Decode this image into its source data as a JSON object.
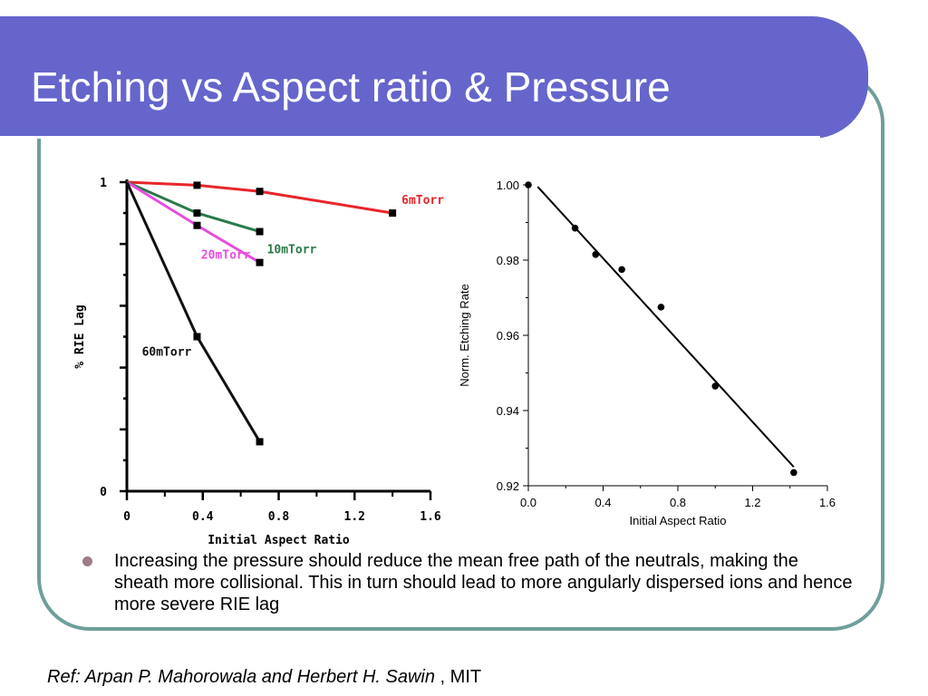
{
  "slide": {
    "title": "Etching vs Aspect ratio & Pressure",
    "bullet": "Increasing the pressure should reduce the mean free path of the neutrals, making the sheath more collisional. This in turn should lead to more angularly dispersed ions and hence more severe RIE lag",
    "ref_authors": "Ref: Arpan P. Mahorowala and Herbert H. Sawin",
    "ref_affiliation": " , MIT"
  },
  "colors": {
    "title_bar": "#6565cc",
    "frame_border": "#6f9f9b",
    "bullet": "#9e7e86"
  },
  "chart_data": [
    {
      "type": "line",
      "title": "",
      "xlabel": "Initial Aspect Ratio",
      "ylabel": "% RIE Lag",
      "xlim": [
        0,
        1.6
      ],
      "ylim": [
        0,
        1
      ],
      "x_ticks": [
        "0",
        "0.4",
        "0.8",
        "1.2",
        "1.6"
      ],
      "y_ticks": [
        "0",
        "",
        "",
        "",
        "",
        "",
        "",
        "",
        "",
        "",
        "1"
      ],
      "grid": false,
      "legend": "inline labels",
      "series": [
        {
          "name": "6mTorr",
          "color": "#e8262a",
          "x": [
            0,
            0.37,
            0.7,
            1.4
          ],
          "y": [
            1,
            0.99,
            0.97,
            0.9
          ]
        },
        {
          "name": "10mTorr",
          "color": "#2a7a4a",
          "x": [
            0,
            0.37,
            0.7
          ],
          "y": [
            1,
            0.9,
            0.84
          ]
        },
        {
          "name": "20mTorr",
          "color": "#e84de0",
          "x": [
            0,
            0.37,
            0.7
          ],
          "y": [
            1,
            0.86,
            0.74
          ]
        },
        {
          "name": "60mTorr",
          "color": "#111111",
          "x": [
            0,
            0.37,
            0.7
          ],
          "y": [
            1,
            0.5,
            0.16
          ]
        }
      ]
    },
    {
      "type": "scatter",
      "title": "",
      "xlabel": "Initial Aspect Ratio",
      "ylabel": "Norm. Etching Rate",
      "xlim": [
        0,
        1.6
      ],
      "ylim": [
        0.92,
        1.0
      ],
      "x_ticks": [
        "0.0",
        "0.4",
        "0.8",
        "1.2",
        "1.6"
      ],
      "y_ticks": [
        "0.92",
        "0.94",
        "0.96",
        "0.98",
        "1.00"
      ],
      "grid": false,
      "points": {
        "x": [
          0.0,
          0.25,
          0.36,
          0.5,
          0.71,
          1.0,
          1.42
        ],
        "y": [
          1.0,
          0.9885,
          0.9815,
          0.9775,
          0.9675,
          0.9465,
          0.9235
        ]
      },
      "fit_line": {
        "x": [
          0.05,
          1.42
        ],
        "y": [
          0.9995,
          0.925
        ]
      }
    }
  ]
}
